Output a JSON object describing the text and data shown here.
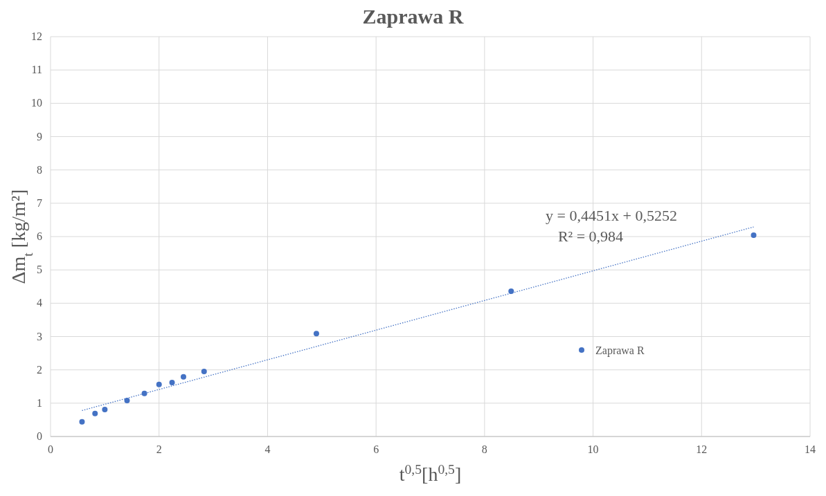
{
  "chart_data": {
    "type": "scatter",
    "title": "Zaprawa R",
    "xlabel": "t$^{0,5}$[h$^{0,5}$]",
    "ylabel": "Δm$_{t}$ [kg/m²]",
    "xlim": [
      0,
      14
    ],
    "xticks": [
      0,
      2,
      4,
      6,
      8,
      10,
      12,
      14
    ],
    "ylim": [
      0,
      12
    ],
    "yticks": [
      0,
      1,
      2,
      3,
      4,
      5,
      6,
      7,
      8,
      9,
      10,
      11,
      12
    ],
    "grid": true,
    "legend": "bottom right",
    "series": [
      {
        "name": "Zaprawa R",
        "marker": "circle",
        "color": "#4472c4",
        "x": [
          0.58,
          0.82,
          1.0,
          1.41,
          1.73,
          2.0,
          2.24,
          2.45,
          2.83,
          4.9,
          8.49,
          12.96
        ],
        "values": [
          0.44,
          0.69,
          0.81,
          1.08,
          1.29,
          1.56,
          1.62,
          1.79,
          1.95,
          3.09,
          4.36,
          6.04
        ]
      },
      {
        "type": "line",
        "marker": "none",
        "color": "#4472c4",
        "line_style": "dotted",
        "x": [
          0.58,
          12.96
        ],
        "values": [
          0.78,
          6.29
        ]
      }
    ],
    "annotations": [
      "y = 0,4451x + 0,5252",
      "R² = 0,984"
    ]
  }
}
